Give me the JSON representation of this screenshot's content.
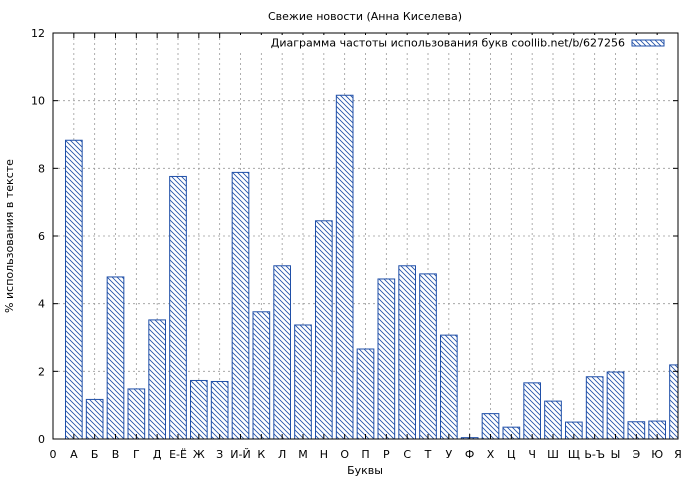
{
  "chart_data": {
    "type": "bar",
    "title": "Свежие новости (Анна Киселева)",
    "xlabel": "Буквы",
    "ylabel": "% использования в тексте",
    "legend": {
      "label": "Диаграмма частоты использования букв coollib.net/b/627256",
      "placement": "top-right"
    },
    "ylim": [
      0,
      12
    ],
    "yticks": [
      0,
      2,
      4,
      6,
      8,
      10,
      12
    ],
    "grid": true,
    "xtick_labels": [
      "0",
      "А",
      "Б",
      "В",
      "Г",
      "Д",
      "Е-Ё",
      "Ж",
      "З",
      "И-Й",
      "К",
      "Л",
      "М",
      "Н",
      "О",
      "П",
      "Р",
      "С",
      "Т",
      "У",
      "Ф",
      "Х",
      "Ц",
      "Ч",
      "Ш",
      "Щ",
      "Ь-Ъ",
      "Ы",
      "Э",
      "Ю",
      "Я"
    ],
    "categories": [
      "А",
      "Б",
      "В",
      "Г",
      "Д",
      "Е-Ё",
      "Ж",
      "З",
      "И-Й",
      "К",
      "Л",
      "М",
      "Н",
      "О",
      "П",
      "Р",
      "С",
      "Т",
      "У",
      "Ф",
      "Х",
      "Ц",
      "Ч",
      "Ш",
      "Щ",
      "Ь-Ъ",
      "Ы",
      "Э",
      "Ю",
      "Я"
    ],
    "values": [
      8.83,
      1.17,
      4.79,
      1.48,
      3.52,
      7.76,
      1.73,
      1.7,
      7.88,
      3.76,
      5.12,
      3.37,
      6.45,
      10.16,
      2.66,
      4.73,
      5.12,
      4.88,
      3.07,
      0.04,
      0.75,
      0.35,
      1.66,
      1.12,
      0.5,
      1.84,
      1.98,
      0.51,
      0.53,
      2.19
    ],
    "colors": {
      "bar_stroke": "#1f4fa8",
      "hatch": "#1f4fa8",
      "grid": "#9a9a9a"
    }
  }
}
